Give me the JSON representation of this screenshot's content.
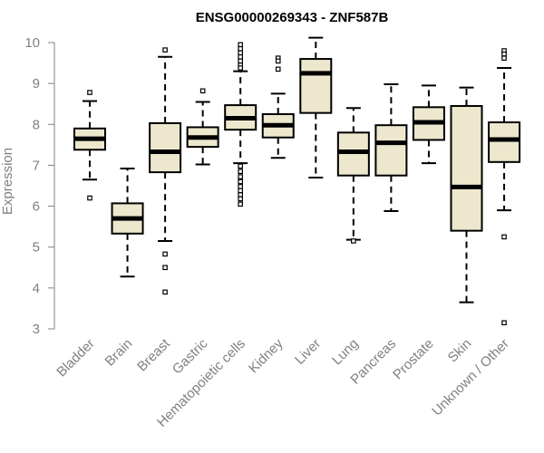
{
  "chart_data": {
    "type": "boxplot",
    "title": "ENSG00000269343 - ZNF587B",
    "xlabel": "",
    "ylabel": "Expression",
    "ylim": [
      3,
      10
    ],
    "yticks": [
      3,
      4,
      5,
      6,
      7,
      8,
      9,
      10
    ],
    "box_fill": "#ede7cd",
    "categories": [
      "Bladder",
      "Brain",
      "Breast",
      "Gastric",
      "Hematopoietic cells",
      "Kidney",
      "Liver",
      "Lung",
      "Pancreas",
      "Prostate",
      "Skin",
      "Unknown / Other"
    ],
    "boxes": [
      {
        "min": 6.65,
        "q1": 7.38,
        "median": 7.65,
        "q3": 7.9,
        "max": 8.57,
        "outliers": [
          8.78,
          6.2
        ]
      },
      {
        "min": 4.28,
        "q1": 5.33,
        "median": 5.7,
        "q3": 6.07,
        "max": 6.92,
        "outliers": []
      },
      {
        "min": 5.15,
        "q1": 6.83,
        "median": 7.33,
        "q3": 8.03,
        "max": 9.65,
        "outliers": [
          9.82,
          4.83,
          4.5,
          3.9
        ]
      },
      {
        "min": 7.02,
        "q1": 7.45,
        "median": 7.68,
        "q3": 7.93,
        "max": 8.55,
        "outliers": [
          8.82
        ]
      },
      {
        "min": 7.05,
        "q1": 7.87,
        "median": 8.15,
        "q3": 8.47,
        "max": 9.3,
        "outliers": [
          9.95,
          9.85,
          9.75,
          9.65,
          9.55,
          9.45,
          9.38,
          6.98,
          6.85,
          6.72,
          6.6,
          6.48,
          6.38,
          6.28,
          6.18,
          6.05
        ]
      },
      {
        "min": 7.18,
        "q1": 7.68,
        "median": 7.98,
        "q3": 8.25,
        "max": 8.75,
        "outliers": [
          9.62,
          9.55,
          9.35
        ]
      },
      {
        "min": 6.7,
        "q1": 8.28,
        "median": 9.25,
        "q3": 9.6,
        "max": 10.12,
        "outliers": []
      },
      {
        "min": 5.18,
        "q1": 6.75,
        "median": 7.33,
        "q3": 7.8,
        "max": 8.4,
        "outliers": [
          5.15
        ]
      },
      {
        "min": 5.88,
        "q1": 6.75,
        "median": 7.55,
        "q3": 7.98,
        "max": 8.98,
        "outliers": []
      },
      {
        "min": 7.05,
        "q1": 7.62,
        "median": 8.05,
        "q3": 8.42,
        "max": 8.95,
        "outliers": []
      },
      {
        "min": 3.65,
        "q1": 5.4,
        "median": 6.47,
        "q3": 8.45,
        "max": 8.9,
        "outliers": []
      },
      {
        "min": 5.9,
        "q1": 7.08,
        "median": 7.63,
        "q3": 8.05,
        "max": 9.38,
        "outliers": [
          9.8,
          9.72,
          9.62,
          5.25,
          3.15
        ]
      }
    ]
  }
}
